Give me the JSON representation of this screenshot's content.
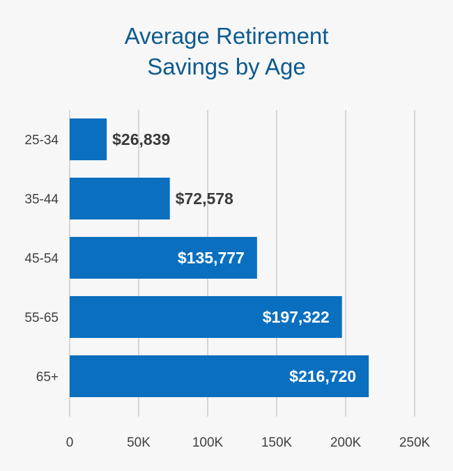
{
  "chart_data": {
    "type": "bar",
    "orientation": "horizontal",
    "title": "Average Retirement Savings by Age",
    "title_lines": [
      "Average Retirement",
      "Savings by Age"
    ],
    "categories": [
      "25-34",
      "35-44",
      "45-54",
      "55-65",
      "65+"
    ],
    "values": [
      26839,
      72578,
      135777,
      197322,
      216720
    ],
    "value_labels": [
      "$26,839",
      "$72,578",
      "$135,777",
      "$197,322",
      "$216,720"
    ],
    "xlim": [
      0,
      250000
    ],
    "x_ticks": [
      0,
      50000,
      100000,
      150000,
      200000,
      250000
    ],
    "x_tick_labels": [
      "0",
      "50K",
      "100K",
      "150K",
      "200K",
      "250K"
    ],
    "xlabel": "",
    "ylabel": "",
    "grid": "vertical",
    "legend": "none",
    "colors": {
      "bar": "#0a6fbf",
      "grid": "#d6d6d6",
      "title": "#0d5a8f",
      "label_outside": "#3a3a3a",
      "label_inside": "#ffffff",
      "tick_text": "#3f3f3f"
    }
  }
}
